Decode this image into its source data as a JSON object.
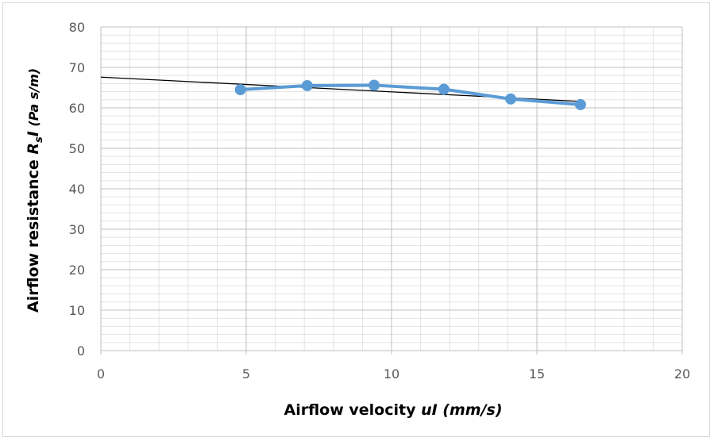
{
  "chart_data": {
    "type": "scatter",
    "xlabel": {
      "main": "Airflow velocity ",
      "var": "uI",
      "unit": " (mm/s)"
    },
    "ylabel": {
      "main": "Airflow resistance ",
      "var": "R",
      "sub": "s",
      "var2": "I",
      "unit": " (Pa s/m)"
    },
    "xlim": [
      0,
      20
    ],
    "ylim": [
      0,
      80
    ],
    "xticks": [
      "0",
      "5",
      "10",
      "15",
      "20"
    ],
    "yticks": [
      "0",
      "10",
      "20",
      "30",
      "40",
      "50",
      "60",
      "70",
      "80"
    ],
    "grid": {
      "major": true,
      "minor": true
    },
    "series": [
      {
        "x": [
          4.8,
          7.1,
          9.4,
          11.8,
          14.1,
          16.5
        ],
        "y": [
          64.5,
          65.5,
          65.6,
          64.6,
          62.2,
          60.8
        ],
        "color": "#5b9bd5",
        "mode": "lines+markers"
      }
    ],
    "trendline": {
      "x": [
        0,
        16.5
      ],
      "y": [
        67.6,
        61.6
      ],
      "color": "#000000"
    }
  }
}
